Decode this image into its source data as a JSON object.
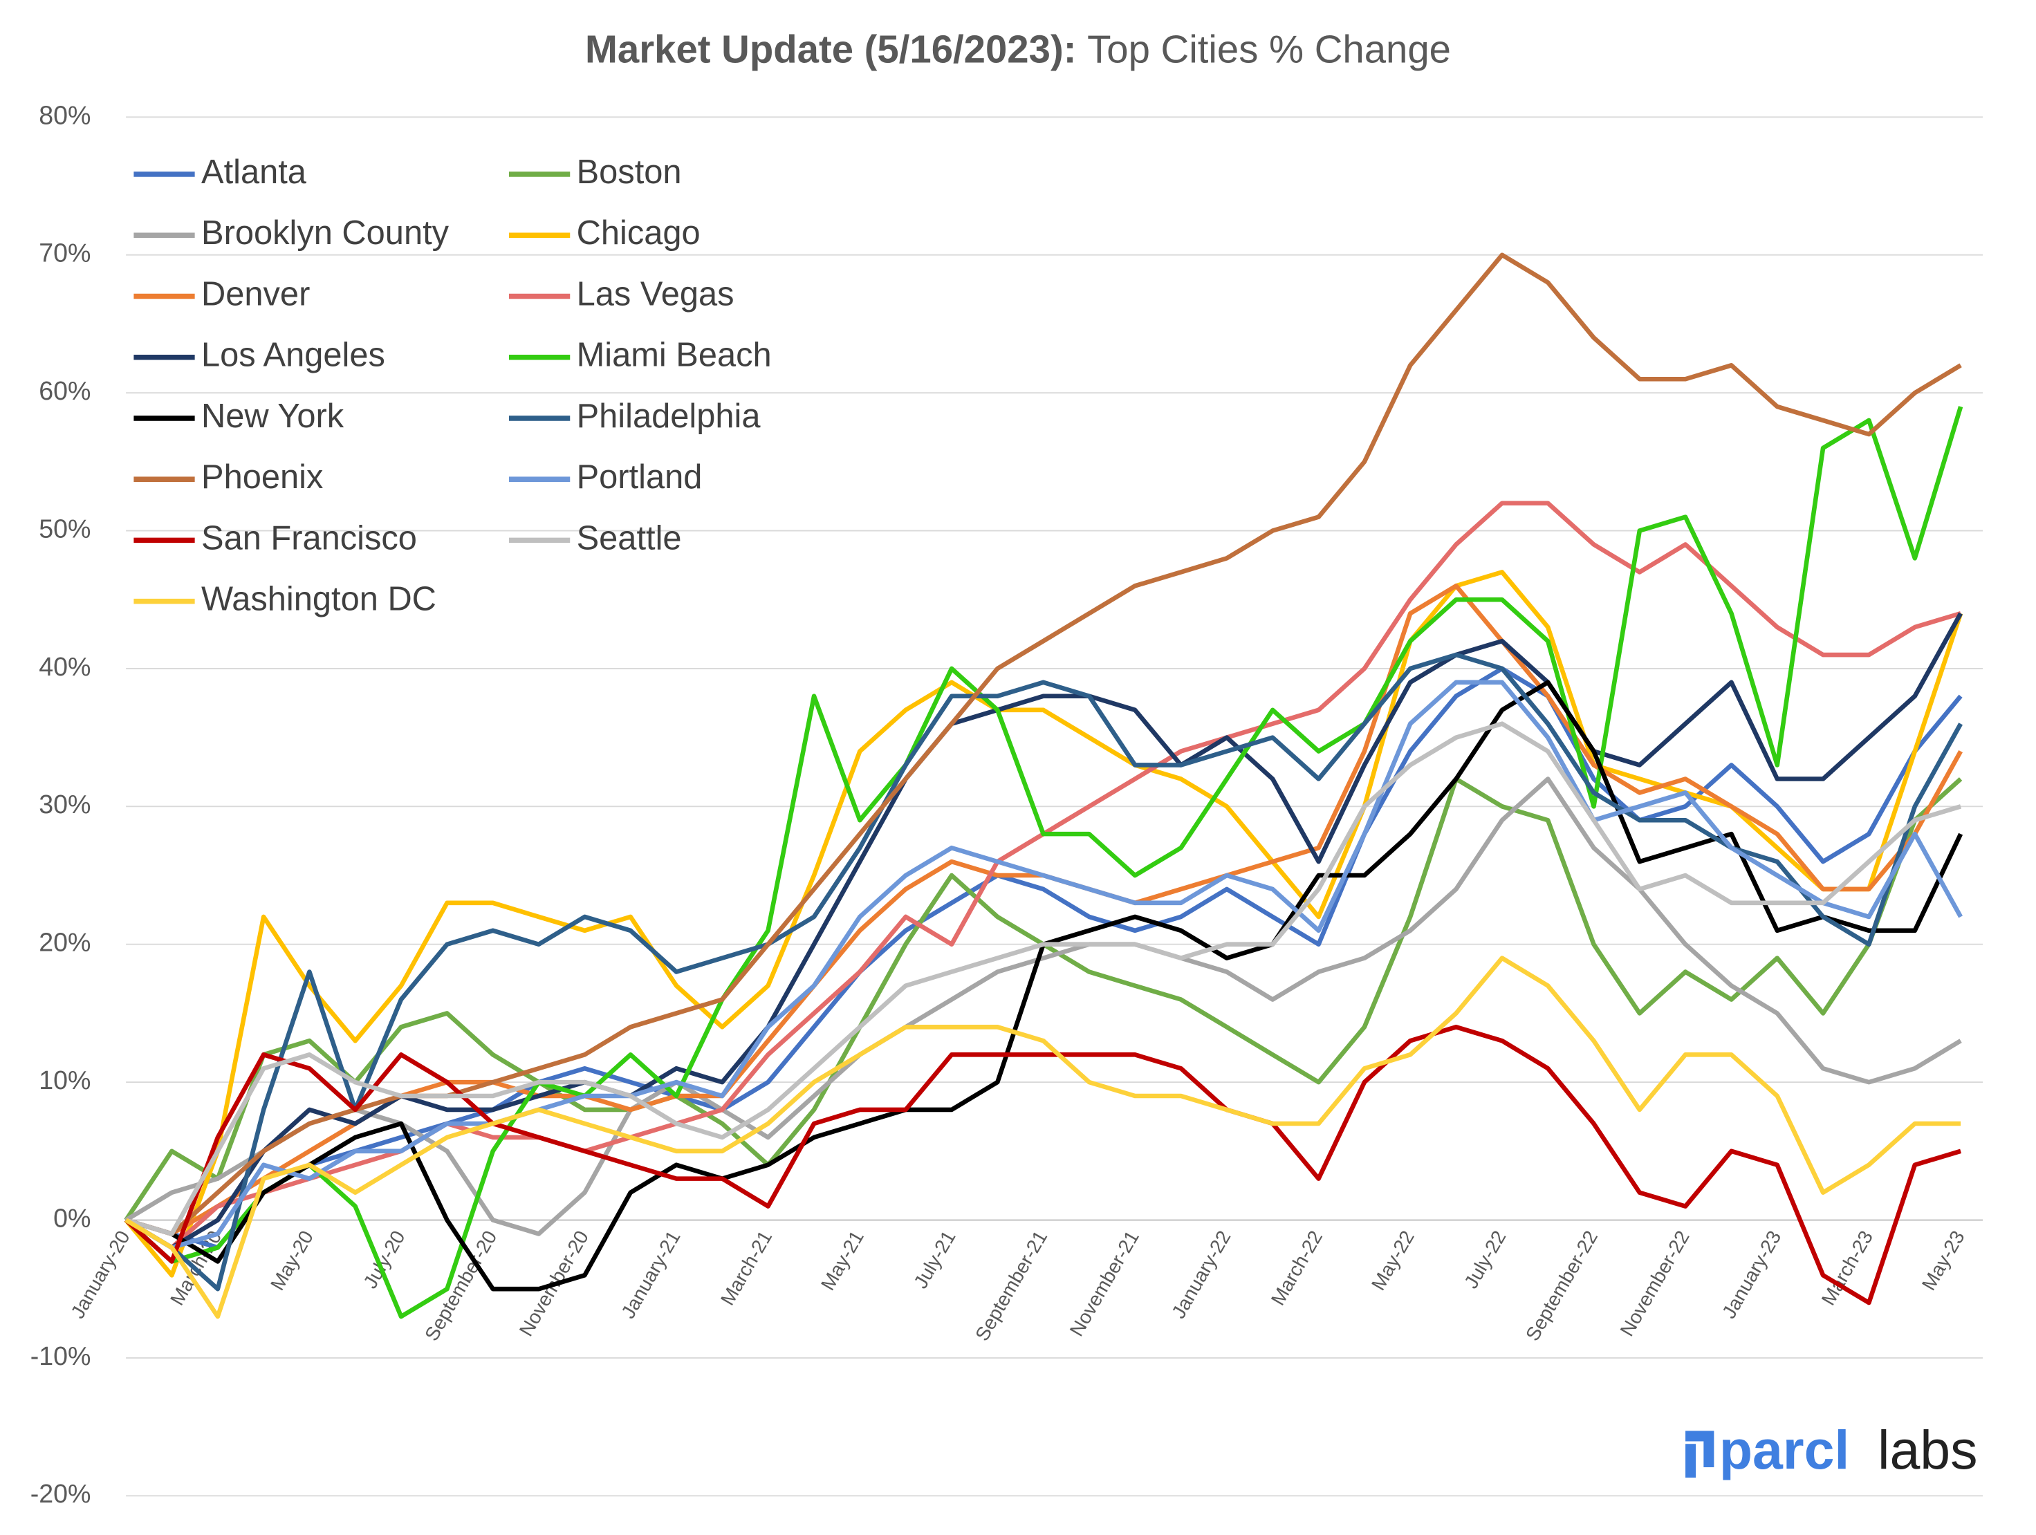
{
  "chart_data": {
    "type": "line",
    "title": "Market Update (5/16/2023):",
    "subtitle": "Top Cities % Change",
    "logo": {
      "brand": "parcl",
      "suffix": "labs"
    },
    "categories": [
      "January-20",
      null,
      "March-20",
      null,
      "May-20",
      null,
      "July-20",
      null,
      "September-20",
      null,
      "November-20",
      null,
      "January-21",
      null,
      "March-21",
      null,
      "May-21",
      null,
      "July-21",
      null,
      "September-21",
      null,
      "November-21",
      null,
      "January-22",
      null,
      "March-22",
      null,
      "May-22",
      null,
      "July-22",
      null,
      "September-22",
      null,
      "November-22",
      null,
      "January-23",
      null,
      "March-23",
      null,
      "May-23"
    ],
    "ylim": [
      -20,
      80
    ],
    "yticks": [
      {
        "value": -20,
        "label": "-20%"
      },
      {
        "value": -10,
        "label": "-10%"
      },
      {
        "value": 0,
        "label": "0%"
      },
      {
        "value": 10,
        "label": "10%"
      },
      {
        "value": 20,
        "label": "20%"
      },
      {
        "value": 30,
        "label": "30%"
      },
      {
        "value": 40,
        "label": "40%"
      },
      {
        "value": 50,
        "label": "50%"
      },
      {
        "value": 60,
        "label": "60%"
      },
      {
        "value": 70,
        "label": "70%"
      },
      {
        "value": 80,
        "label": "80%"
      }
    ],
    "grid": true,
    "legend": "upper left",
    "series": [
      {
        "name": "Atlanta",
        "color": "#4472c4",
        "values": [
          0,
          -1,
          -2,
          2,
          4,
          5,
          6,
          7,
          8,
          10,
          11,
          10,
          9,
          8,
          10,
          14,
          18,
          21,
          23,
          25,
          24,
          22,
          21,
          22,
          24,
          22,
          20,
          28,
          34,
          38,
          40,
          38,
          32,
          29,
          30,
          33,
          30,
          26,
          28,
          34,
          38
        ]
      },
      {
        "name": "Boston",
        "color": "#70ad47",
        "values": [
          0,
          5,
          3,
          12,
          13,
          10,
          14,
          15,
          12,
          10,
          8,
          8,
          9,
          7,
          4,
          8,
          14,
          20,
          25,
          22,
          20,
          18,
          17,
          16,
          14,
          12,
          10,
          14,
          22,
          32,
          30,
          29,
          20,
          15,
          18,
          16,
          19,
          15,
          20,
          29,
          32
        ]
      },
      {
        "name": "Brooklyn County",
        "color": "#a5a5a5",
        "values": [
          0,
          2,
          3,
          5,
          7,
          8,
          7,
          5,
          0,
          -1,
          2,
          8,
          10,
          8,
          6,
          9,
          12,
          14,
          16,
          18,
          19,
          20,
          20,
          19,
          18,
          16,
          18,
          19,
          21,
          24,
          29,
          32,
          27,
          24,
          20,
          17,
          15,
          11,
          10,
          11,
          13
        ]
      },
      {
        "name": "Chicago",
        "color": "#ffc000",
        "values": [
          0,
          -4,
          5,
          22,
          17,
          13,
          17,
          23,
          23,
          22,
          21,
          22,
          17,
          14,
          17,
          25,
          34,
          37,
          39,
          37,
          37,
          35,
          33,
          32,
          30,
          26,
          22,
          30,
          42,
          46,
          47,
          43,
          33,
          32,
          31,
          30,
          27,
          24,
          24,
          34,
          44
        ]
      },
      {
        "name": "Denver",
        "color": "#ed7d31",
        "values": [
          0,
          -1,
          1,
          3,
          5,
          7,
          9,
          10,
          10,
          9,
          9,
          8,
          9,
          9,
          13,
          17,
          21,
          24,
          26,
          25,
          25,
          24,
          23,
          24,
          25,
          26,
          27,
          34,
          44,
          46,
          42,
          38,
          33,
          31,
          32,
          30,
          28,
          24,
          24,
          28,
          34
        ]
      },
      {
        "name": "Las Vegas",
        "color": "#e46c6a",
        "values": [
          0,
          -2,
          1,
          2,
          3,
          4,
          5,
          7,
          6,
          6,
          5,
          6,
          7,
          8,
          12,
          15,
          18,
          22,
          20,
          26,
          28,
          30,
          32,
          34,
          35,
          36,
          37,
          40,
          45,
          49,
          52,
          52,
          49,
          47,
          49,
          46,
          43,
          41,
          41,
          43,
          44
        ]
      },
      {
        "name": "Los Angeles",
        "color": "#1f3864",
        "values": [
          0,
          -2,
          0,
          5,
          8,
          7,
          9,
          8,
          8,
          9,
          10,
          9,
          11,
          10,
          14,
          20,
          26,
          32,
          36,
          37,
          38,
          38,
          37,
          33,
          35,
          32,
          26,
          33,
          39,
          41,
          42,
          39,
          34,
          33,
          36,
          39,
          32,
          32,
          35,
          38,
          44
        ]
      },
      {
        "name": "Miami Beach",
        "color": "#33cc11",
        "values": [
          0,
          -3,
          -2,
          2,
          4,
          1,
          -7,
          -5,
          5,
          10,
          9,
          12,
          9,
          16,
          21,
          38,
          29,
          33,
          40,
          37,
          28,
          28,
          25,
          27,
          32,
          37,
          34,
          36,
          42,
          45,
          45,
          42,
          30,
          50,
          51,
          44,
          33,
          56,
          58,
          48,
          59
        ]
      },
      {
        "name": "New York",
        "color": "#000000",
        "values": [
          0,
          -1,
          -3,
          2,
          4,
          6,
          7,
          0,
          -5,
          -5,
          -4,
          2,
          4,
          3,
          4,
          6,
          7,
          8,
          8,
          10,
          20,
          21,
          22,
          21,
          19,
          20,
          25,
          25,
          28,
          32,
          37,
          39,
          34,
          26,
          27,
          28,
          21,
          22,
          21,
          21,
          28
        ]
      },
      {
        "name": "Philadelphia",
        "color": "#2e5f8a",
        "values": [
          0,
          -2,
          -5,
          8,
          18,
          8,
          16,
          20,
          21,
          20,
          22,
          21,
          18,
          19,
          20,
          22,
          27,
          33,
          38,
          38,
          39,
          38,
          33,
          33,
          34,
          35,
          32,
          36,
          40,
          41,
          40,
          36,
          31,
          29,
          29,
          27,
          26,
          22,
          20,
          30,
          36
        ]
      },
      {
        "name": "Phoenix",
        "color": "#c0703c",
        "values": [
          0,
          -1,
          2,
          5,
          7,
          8,
          9,
          9,
          10,
          11,
          12,
          14,
          15,
          16,
          20,
          24,
          28,
          32,
          36,
          40,
          42,
          44,
          46,
          47,
          48,
          50,
          51,
          55,
          62,
          66,
          70,
          68,
          64,
          61,
          61,
          62,
          59,
          58,
          57,
          60,
          62
        ]
      },
      {
        "name": "Portland",
        "color": "#6d97d9",
        "values": [
          0,
          -2,
          -1,
          4,
          3,
          5,
          5,
          7,
          7,
          8,
          9,
          9,
          10,
          9,
          14,
          17,
          22,
          25,
          27,
          26,
          25,
          24,
          23,
          23,
          25,
          24,
          21,
          28,
          36,
          39,
          39,
          35,
          29,
          30,
          31,
          27,
          25,
          23,
          22,
          28,
          22
        ]
      },
      {
        "name": "San Francisco",
        "color": "#c00000",
        "values": [
          0,
          -3,
          6,
          12,
          11,
          8,
          12,
          10,
          7,
          6,
          5,
          4,
          3,
          3,
          1,
          7,
          8,
          8,
          12,
          12,
          12,
          12,
          12,
          11,
          8,
          7,
          3,
          10,
          13,
          14,
          13,
          11,
          7,
          2,
          1,
          5,
          4,
          -4,
          -6,
          4,
          5
        ]
      },
      {
        "name": "Seattle",
        "color": "#bfbfbf",
        "values": [
          0,
          -1,
          5,
          11,
          12,
          10,
          9,
          9,
          9,
          10,
          10,
          9,
          7,
          6,
          8,
          11,
          14,
          17,
          18,
          19,
          20,
          20,
          20,
          19,
          20,
          20,
          24,
          30,
          33,
          35,
          36,
          34,
          29,
          24,
          25,
          23,
          23,
          23,
          26,
          29,
          30
        ]
      },
      {
        "name": "Washington DC",
        "color": "#fdd13a",
        "values": [
          0,
          -2,
          -7,
          3,
          4,
          2,
          4,
          6,
          7,
          8,
          7,
          6,
          5,
          5,
          7,
          10,
          12,
          14,
          14,
          14,
          13,
          10,
          9,
          9,
          8,
          7,
          7,
          11,
          12,
          15,
          19,
          17,
          13,
          8,
          12,
          12,
          9,
          2,
          4,
          7,
          7
        ]
      }
    ]
  }
}
